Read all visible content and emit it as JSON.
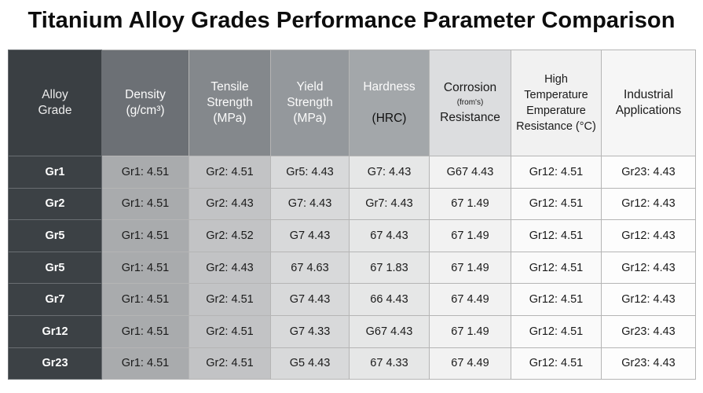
{
  "title": "Titanium Alloy Grades Performance Parameter Comparison",
  "colors": {
    "header_bg": [
      "#3a3f43",
      "#6c7075",
      "#84888c",
      "#94989c",
      "#a3a7aa",
      "#dcdddf",
      "#f1f1f1",
      "#f6f6f6"
    ],
    "column_bg": [
      "#3c4145",
      "#a9abad",
      "#c2c3c5",
      "#d8d9da",
      "#e6e7e7",
      "#f2f2f2",
      "#fafafa",
      "#fdfdfd"
    ]
  },
  "chart_data": {
    "type": "table",
    "title": "Titanium Alloy Grades Performance Parameter Comparison",
    "columns": [
      {
        "lines": [
          "Alloy",
          "Grade"
        ]
      },
      {
        "lines": [
          "Density",
          "(g/cm³)"
        ]
      },
      {
        "lines": [
          "Tensile",
          "Strength",
          "(MPa)"
        ]
      },
      {
        "lines": [
          "Yield",
          "Strength",
          "(MPa)"
        ]
      },
      {
        "lines": [
          "Hardness",
          "(HRC)"
        ]
      },
      {
        "lines": [
          "Corrosion",
          "(from's)",
          "Resistance"
        ]
      },
      {
        "lines": [
          "High",
          "Temperature",
          "Emperature",
          "Resistance (°C)"
        ]
      },
      {
        "lines": [
          "Industrial",
          "Applications"
        ]
      }
    ],
    "rows": [
      [
        "Gr1",
        "Gr1: 4.51",
        "Gr2: 4.51",
        "Gr5: 4.43",
        "G7: 4.43",
        "G67 4.43",
        "Gr12: 4.51",
        "Gr23: 4.43"
      ],
      [
        "Gr2",
        "Gr1: 4.51",
        "Gr2: 4.43",
        "G7: 4.43",
        "Gr7: 4.43",
        "67 1.49",
        "Gr12: 4.51",
        "Gr12: 4.43"
      ],
      [
        "Gr5",
        "Gr1: 4.51",
        "Gr2: 4.52",
        "G7 4.43",
        "67 4.43",
        "67 1.49",
        "Gr12: 4.51",
        "Gr12: 4.43"
      ],
      [
        "Gr5",
        "Gr1: 4.51",
        "Gr2: 4.43",
        "67 4.63",
        "67 1.83",
        "67 1.49",
        "Gr12: 4.51",
        "Gr12: 4.43"
      ],
      [
        "Gr7",
        "Gr1: 4.51",
        "Gr2: 4.51",
        "G7 4.43",
        "66 4.43",
        "67 4.49",
        "Gr12: 4.51",
        "Gr12: 4.43"
      ],
      [
        "Gr12",
        "Gr1: 4.51",
        "Gr2: 4.51",
        "G7 4.33",
        "G67 4.43",
        "67 1.49",
        "Gr12: 4.51",
        "Gr23: 4.43"
      ],
      [
        "Gr23",
        "Gr1: 4.51",
        "Gr2: 4.51",
        "G5 4.43",
        "67 4.33",
        "67 4.49",
        "Gr12: 4.51",
        "Gr23: 4.43"
      ]
    ]
  }
}
